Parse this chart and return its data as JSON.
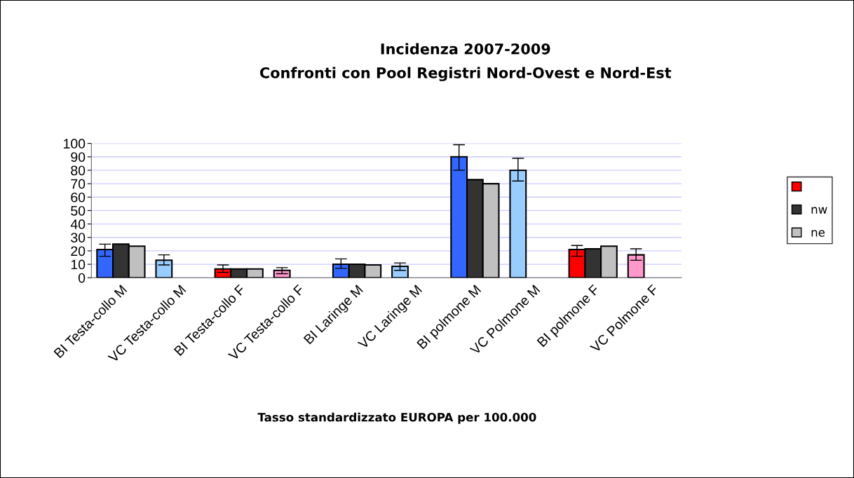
{
  "chart_data": {
    "type": "bar",
    "title": "Incidenza 2007-2009",
    "subtitle": "Confronti con Pool Registri Nord-Ovest e Nord-Est",
    "xlabel": "Tasso standardizzato EUROPA per 100.000",
    "categories": [
      "BI Testa-collo M",
      "VC Testa-collo M",
      "BI Testa-collo F",
      "VC Testa-collo F",
      "BI Laringe M",
      "VC Laringe M",
      "BI polmone M",
      "VC Polmone M",
      "BI polmone F",
      "VC Polmone F"
    ],
    "series": [
      {
        "color": "#ff0000",
        "colors": [
          "#3366ff",
          "#99ccff",
          "#ff0000",
          "#ff99cc",
          "#3366ff",
          "#99ccff",
          "#3366ff",
          "#99ccff",
          "#ff0000",
          "#ff99cc"
        ],
        "values": [
          21,
          13,
          6.5,
          5.5,
          10,
          8.5,
          90,
          80,
          21,
          17
        ],
        "errors": [
          [
            16,
            25
          ],
          [
            9.5,
            17
          ],
          [
            4,
            9.5
          ],
          [
            3,
            7.5
          ],
          [
            7,
            14
          ],
          [
            5.5,
            11
          ],
          [
            80,
            99
          ],
          [
            72,
            89
          ],
          [
            16,
            24
          ],
          [
            13,
            21.5
          ]
        ]
      },
      {
        "name": "nw",
        "color": "#333333",
        "values": [
          25,
          null,
          6.5,
          null,
          10,
          null,
          73,
          null,
          21.5,
          null
        ]
      },
      {
        "name": "ne",
        "color": "#c0c0c0",
        "values": [
          23.5,
          null,
          6.5,
          null,
          9.5,
          null,
          70,
          null,
          23.5,
          null
        ]
      }
    ],
    "ylim": [
      0,
      100
    ],
    "yticks": [
      0,
      10,
      20,
      30,
      40,
      50,
      60,
      70,
      80,
      90,
      100
    ],
    "grid": "y",
    "legend": "right"
  }
}
